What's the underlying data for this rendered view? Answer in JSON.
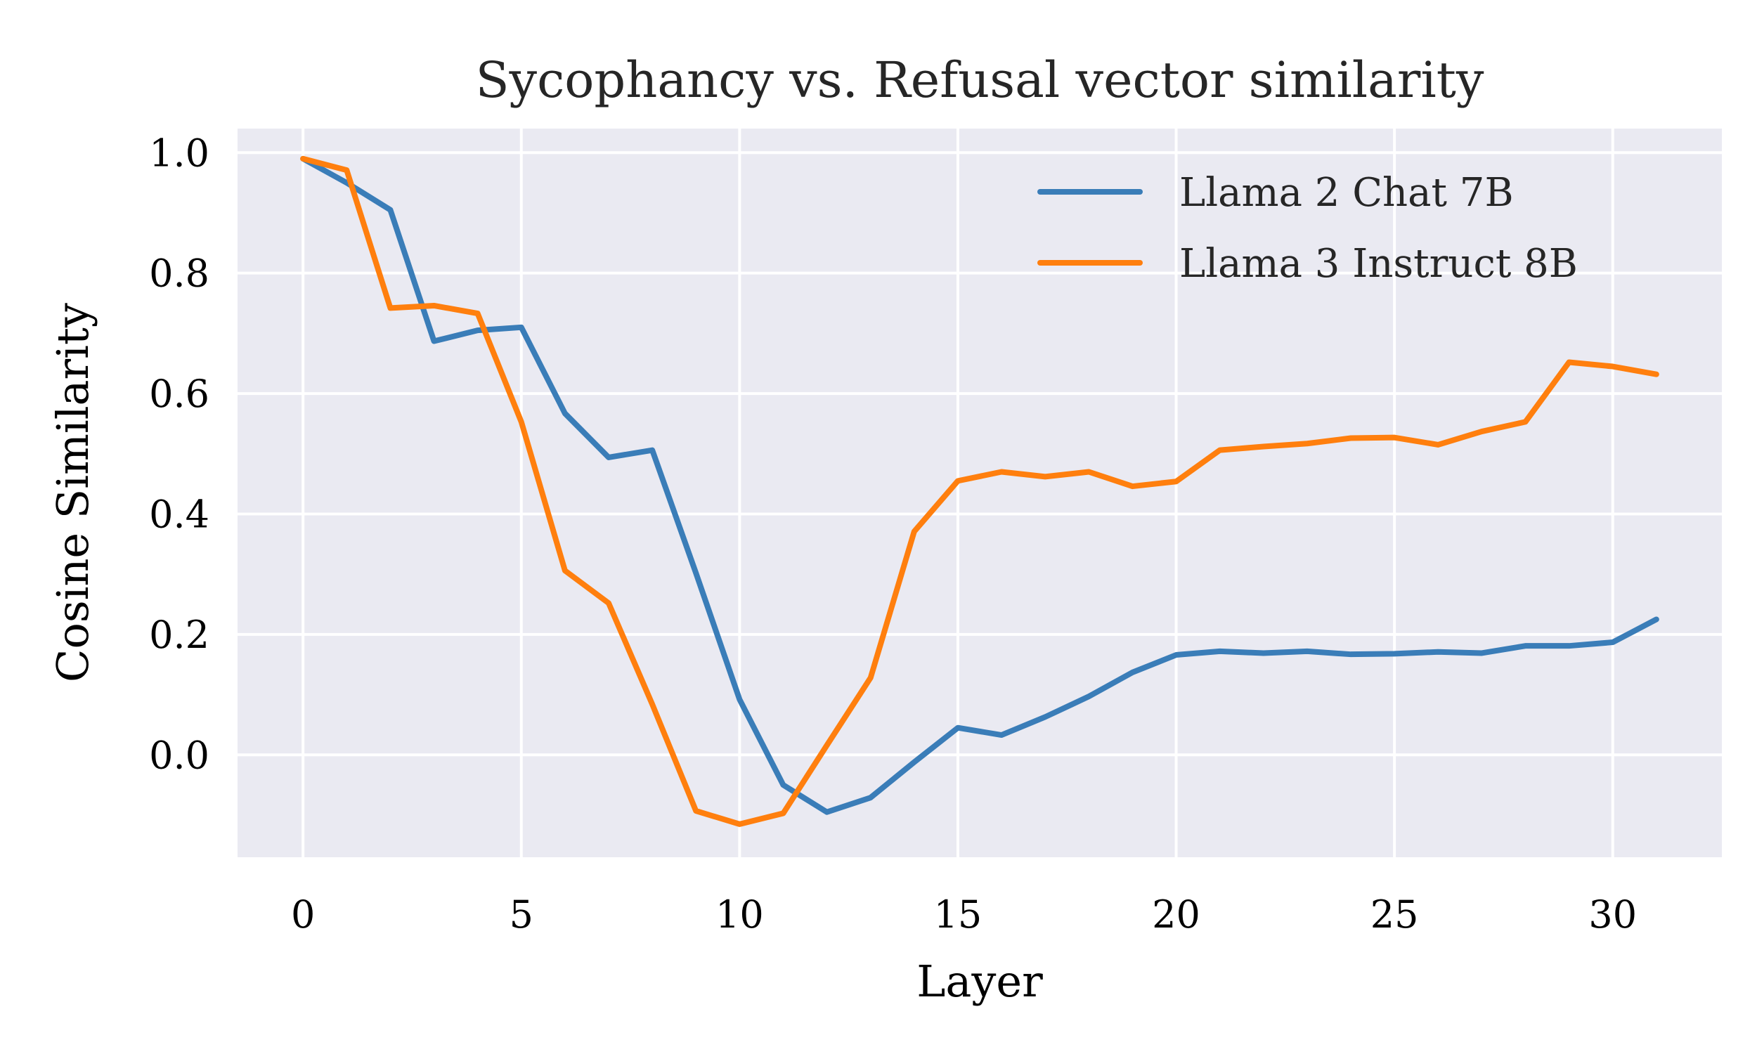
{
  "chart_data": {
    "type": "line",
    "title": "Sycophancy vs. Refusal vector similarity",
    "xlabel": "Layer",
    "ylabel": "Cosine Similarity",
    "xlim": [
      -1.5,
      32.5
    ],
    "ylim": [
      -0.17,
      1.04
    ],
    "xticks": [
      0,
      5,
      10,
      15,
      20,
      25,
      30
    ],
    "yticks": [
      0.0,
      0.2,
      0.4,
      0.6,
      0.8,
      1.0
    ],
    "ytick_labels": [
      "0.0",
      "0.2",
      "0.4",
      "0.6",
      "0.8",
      "1.0"
    ],
    "grid": true,
    "legend_position": "top-right",
    "background_color": "#EAEAF2",
    "x": [
      0,
      1,
      2,
      3,
      4,
      5,
      6,
      7,
      8,
      9,
      10,
      11,
      12,
      13,
      14,
      15,
      16,
      17,
      18,
      19,
      20,
      21,
      22,
      23,
      24,
      25,
      26,
      27,
      28,
      29,
      30,
      31
    ],
    "series": [
      {
        "name": "Llama 2 Chat 7B",
        "color": "#3A7DB8",
        "values": [
          0.99,
          0.95,
          0.905,
          0.687,
          0.705,
          0.71,
          0.567,
          0.494,
          0.506,
          0.302,
          0.092,
          -0.05,
          -0.095,
          -0.071,
          -0.012,
          0.045,
          0.033,
          0.063,
          0.097,
          0.137,
          0.166,
          0.172,
          0.169,
          0.172,
          0.167,
          0.168,
          0.171,
          0.169,
          0.181,
          0.181,
          0.187,
          0.225
        ]
      },
      {
        "name": "Llama 3 Instruct 8B",
        "color": "#FF7F0E",
        "values": [
          0.99,
          0.971,
          0.742,
          0.746,
          0.733,
          0.553,
          0.306,
          0.252,
          0.084,
          -0.093,
          -0.115,
          -0.097,
          0.016,
          0.128,
          0.371,
          0.455,
          0.47,
          0.462,
          0.47,
          0.446,
          0.454,
          0.506,
          0.512,
          0.517,
          0.526,
          0.527,
          0.515,
          0.537,
          0.553,
          0.652,
          0.645,
          0.632
        ]
      }
    ]
  }
}
